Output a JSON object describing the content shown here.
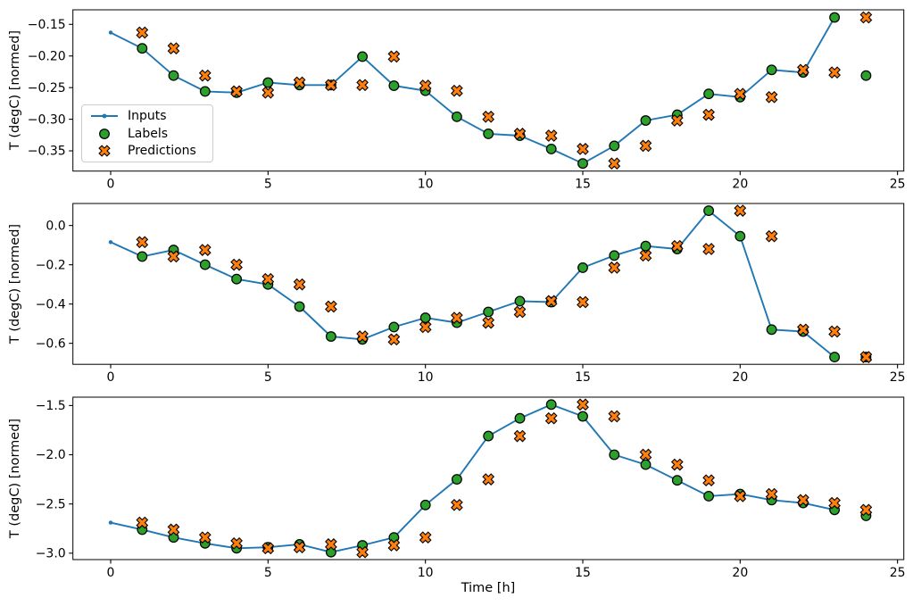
{
  "colors": {
    "inputs": "#1f77b4",
    "labels": "#2ca02c",
    "predictions": "#ff7f0e",
    "marker_edge": "#000000",
    "spine": "#000000",
    "text": "#000000",
    "legend_border": "#cccccc",
    "background": "#ffffff"
  },
  "legend": {
    "items": [
      {
        "label": "Inputs",
        "glyph": "line-dot"
      },
      {
        "label": "Labels",
        "glyph": "circle"
      },
      {
        "label": "Predictions",
        "glyph": "x-marker"
      }
    ]
  },
  "axis": {
    "xlabel": "Time [h]",
    "xticks": [
      0,
      5,
      10,
      15,
      20,
      25
    ],
    "xtick_labels": [
      "0",
      "5",
      "10",
      "15",
      "20",
      "25"
    ],
    "xlim": [
      -1.2,
      25.2
    ]
  },
  "chart_data": [
    {
      "type": "line",
      "ylabel": "T (degC) [normed]",
      "ylim": [
        -0.382,
        -0.127
      ],
      "yticks": [
        -0.15,
        -0.2,
        -0.25,
        -0.3,
        -0.35
      ],
      "ytick_labels": [
        "−0.15",
        "−0.20",
        "−0.25",
        "−0.30",
        "−0.35"
      ],
      "legend_position": "lower-left",
      "grid": false,
      "series": [
        {
          "name": "Inputs",
          "marker": "line-dot",
          "x": [
            0,
            1,
            2,
            3,
            4,
            5,
            6,
            7,
            8,
            9,
            10,
            11,
            12,
            13,
            14,
            15,
            16,
            17,
            18,
            19,
            20,
            21,
            22,
            23
          ],
          "y": [
            -0.163,
            -0.188,
            -0.231,
            -0.256,
            -0.258,
            -0.242,
            -0.246,
            -0.246,
            -0.201,
            -0.247,
            -0.255,
            -0.296,
            -0.323,
            -0.326,
            -0.347,
            -0.37,
            -0.342,
            -0.302,
            -0.293,
            -0.26,
            -0.265,
            -0.222,
            -0.226,
            -0.139
          ]
        },
        {
          "name": "Labels",
          "marker": "circle",
          "x": [
            1,
            2,
            3,
            4,
            5,
            6,
            7,
            8,
            9,
            10,
            11,
            12,
            13,
            14,
            15,
            16,
            17,
            18,
            19,
            20,
            21,
            22,
            23,
            24
          ],
          "y": [
            -0.188,
            -0.231,
            -0.256,
            -0.258,
            -0.242,
            -0.246,
            -0.246,
            -0.201,
            -0.247,
            -0.255,
            -0.296,
            -0.323,
            -0.326,
            -0.347,
            -0.37,
            -0.342,
            -0.302,
            -0.293,
            -0.26,
            -0.265,
            -0.222,
            -0.226,
            -0.139,
            -0.231
          ]
        },
        {
          "name": "Predictions",
          "marker": "X",
          "x": [
            1,
            2,
            3,
            4,
            5,
            6,
            7,
            8,
            9,
            10,
            11,
            12,
            13,
            14,
            15,
            16,
            17,
            18,
            19,
            20,
            21,
            22,
            23,
            24
          ],
          "y": [
            -0.163,
            -0.188,
            -0.231,
            -0.256,
            -0.258,
            -0.242,
            -0.246,
            -0.246,
            -0.201,
            -0.247,
            -0.255,
            -0.296,
            -0.323,
            -0.326,
            -0.347,
            -0.37,
            -0.342,
            -0.302,
            -0.293,
            -0.26,
            -0.265,
            -0.222,
            -0.226,
            -0.139
          ]
        }
      ]
    },
    {
      "type": "line",
      "ylabel": "T (degC) [normed]",
      "ylim": [
        -0.707,
        0.112
      ],
      "yticks": [
        0.0,
        -0.2,
        -0.4,
        -0.6
      ],
      "ytick_labels": [
        "0.0",
        "−0.2",
        "−0.4",
        "−0.6"
      ],
      "grid": false,
      "series": [
        {
          "name": "Inputs",
          "marker": "line-dot",
          "x": [
            0,
            1,
            2,
            3,
            4,
            5,
            6,
            7,
            8,
            9,
            10,
            11,
            12,
            13,
            14,
            15,
            16,
            17,
            18,
            19,
            20,
            21,
            22,
            23
          ],
          "y": [
            -0.085,
            -0.158,
            -0.125,
            -0.2,
            -0.273,
            -0.3,
            -0.413,
            -0.565,
            -0.58,
            -0.517,
            -0.47,
            -0.495,
            -0.44,
            -0.385,
            -0.39,
            -0.215,
            -0.153,
            -0.105,
            -0.12,
            0.075,
            -0.055,
            -0.53,
            -0.54,
            -0.67
          ]
        },
        {
          "name": "Labels",
          "marker": "circle",
          "x": [
            1,
            2,
            3,
            4,
            5,
            6,
            7,
            8,
            9,
            10,
            11,
            12,
            13,
            14,
            15,
            16,
            17,
            18,
            19,
            20,
            21,
            22,
            23,
            24
          ],
          "y": [
            -0.158,
            -0.125,
            -0.2,
            -0.273,
            -0.3,
            -0.413,
            -0.565,
            -0.58,
            -0.517,
            -0.47,
            -0.495,
            -0.44,
            -0.385,
            -0.39,
            -0.215,
            -0.153,
            -0.105,
            -0.12,
            0.075,
            -0.055,
            -0.53,
            -0.54,
            -0.67,
            -0.67
          ]
        },
        {
          "name": "Predictions",
          "marker": "X",
          "x": [
            1,
            2,
            3,
            4,
            5,
            6,
            7,
            8,
            9,
            10,
            11,
            12,
            13,
            14,
            15,
            16,
            17,
            18,
            19,
            20,
            21,
            22,
            23,
            24
          ],
          "y": [
            -0.085,
            -0.158,
            -0.125,
            -0.2,
            -0.273,
            -0.3,
            -0.413,
            -0.565,
            -0.58,
            -0.517,
            -0.47,
            -0.495,
            -0.44,
            -0.385,
            -0.39,
            -0.215,
            -0.153,
            -0.105,
            -0.12,
            0.075,
            -0.055,
            -0.53,
            -0.54,
            -0.67
          ]
        }
      ]
    },
    {
      "type": "line",
      "ylabel": "T (degC) [normed]",
      "ylim": [
        -3.065,
        -1.415
      ],
      "yticks": [
        -1.5,
        -2.0,
        -2.5,
        -3.0
      ],
      "ytick_labels": [
        "−1.5",
        "−2.0",
        "−2.5",
        "−3.0"
      ],
      "grid": false,
      "series": [
        {
          "name": "Inputs",
          "marker": "line-dot",
          "x": [
            0,
            1,
            2,
            3,
            4,
            5,
            6,
            7,
            8,
            9,
            10,
            11,
            12,
            13,
            14,
            15,
            16,
            17,
            18,
            19,
            20,
            21,
            22,
            23
          ],
          "y": [
            -2.69,
            -2.76,
            -2.84,
            -2.9,
            -2.95,
            -2.94,
            -2.91,
            -2.99,
            -2.92,
            -2.84,
            -2.51,
            -2.25,
            -1.81,
            -1.63,
            -1.49,
            -1.61,
            -2.0,
            -2.1,
            -2.26,
            -2.42,
            -2.4,
            -2.46,
            -2.49,
            -2.56
          ]
        },
        {
          "name": "Labels",
          "marker": "circle",
          "x": [
            1,
            2,
            3,
            4,
            5,
            6,
            7,
            8,
            9,
            10,
            11,
            12,
            13,
            14,
            15,
            16,
            17,
            18,
            19,
            20,
            21,
            22,
            23,
            24
          ],
          "y": [
            -2.76,
            -2.84,
            -2.9,
            -2.95,
            -2.94,
            -2.91,
            -2.99,
            -2.92,
            -2.84,
            -2.51,
            -2.25,
            -1.81,
            -1.63,
            -1.49,
            -1.61,
            -2.0,
            -2.1,
            -2.26,
            -2.42,
            -2.4,
            -2.46,
            -2.49,
            -2.56,
            -2.62
          ]
        },
        {
          "name": "Predictions",
          "marker": "X",
          "x": [
            1,
            2,
            3,
            4,
            5,
            6,
            7,
            8,
            9,
            10,
            11,
            12,
            13,
            14,
            15,
            16,
            17,
            18,
            19,
            20,
            21,
            22,
            23,
            24
          ],
          "y": [
            -2.69,
            -2.76,
            -2.84,
            -2.9,
            -2.95,
            -2.94,
            -2.91,
            -2.99,
            -2.92,
            -2.84,
            -2.51,
            -2.25,
            -1.81,
            -1.63,
            -1.49,
            -1.61,
            -2.0,
            -2.1,
            -2.26,
            -2.42,
            -2.4,
            -2.46,
            -2.49,
            -2.56
          ]
        }
      ]
    }
  ]
}
